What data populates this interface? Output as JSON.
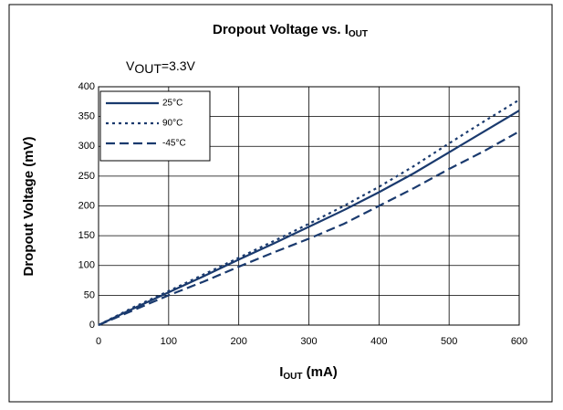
{
  "chart_data": {
    "type": "line",
    "title": {
      "text": "Dropout Voltage vs. I",
      "sub": "OUT"
    },
    "annotation": {
      "text": "V",
      "sub": "OUT",
      "rest": "=3.3V"
    },
    "x_label": {
      "text": "I",
      "sub": "OUT",
      "rest": " (mA)"
    },
    "y_label": "Dropout Voltage (mV)",
    "x": [
      0,
      50,
      100,
      150,
      200,
      250,
      300,
      350,
      400,
      450,
      500,
      550,
      600
    ],
    "series": [
      {
        "name": "25°C",
        "color": "#1a3a6e",
        "dash": "solid",
        "values": [
          0,
          28,
          55,
          82,
          110,
          137,
          165,
          193,
          223,
          255,
          290,
          325,
          360
        ]
      },
      {
        "name": "90°C",
        "color": "#1a3a6e",
        "dash": "dotted",
        "values": [
          0,
          30,
          57,
          85,
          113,
          141,
          170,
          200,
          232,
          267,
          305,
          342,
          378
        ]
      },
      {
        "name": "-45°C",
        "color": "#1a3a6e",
        "dash": "dashed",
        "values": [
          0,
          25,
          50,
          73,
          98,
          122,
          145,
          170,
          200,
          230,
          262,
          292,
          325
        ]
      }
    ],
    "xlim": [
      0,
      600
    ],
    "xticks": [
      0,
      100,
      200,
      300,
      400,
      500,
      600
    ],
    "ylim": [
      0,
      400
    ],
    "yticks": [
      0,
      50,
      100,
      150,
      200,
      250,
      300,
      350,
      400
    ],
    "grid": true,
    "legend": "upper left"
  }
}
